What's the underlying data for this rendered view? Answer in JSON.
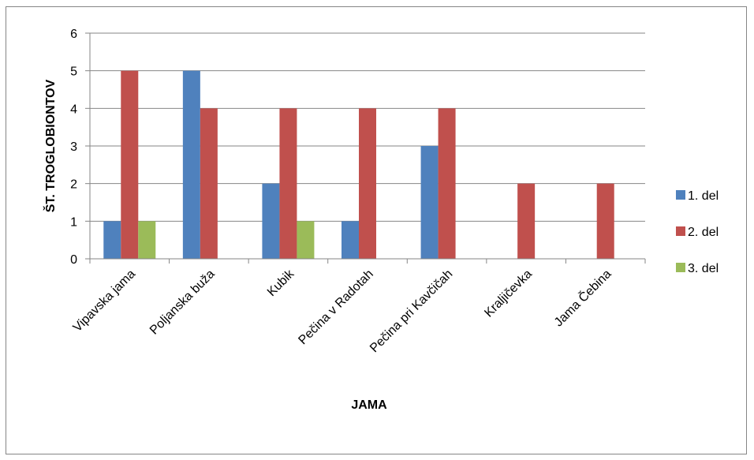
{
  "chart_data": {
    "type": "bar",
    "title": "",
    "xlabel": "JAMA",
    "ylabel": "ŠT. TROGLOBIONTOV",
    "categories": [
      "Vipavska jama",
      "Poljanska buža",
      "Kubik",
      "Pečina v Radotah",
      "Pečina pri Kavčičah",
      "Kraljičevka",
      "Jama Čebina"
    ],
    "series": [
      {
        "name": "1. del",
        "color": "#4F81BD",
        "values": [
          1,
          5,
          2,
          1,
          3,
          null,
          null
        ]
      },
      {
        "name": "2. del",
        "color": "#C0504D",
        "values": [
          5,
          4,
          4,
          4,
          4,
          2,
          2
        ]
      },
      {
        "name": "3. del",
        "color": "#9BBB59",
        "values": [
          1,
          null,
          1,
          null,
          null,
          null,
          null
        ]
      }
    ],
    "ylim": [
      0,
      6
    ],
    "yticks": [
      0,
      1,
      2,
      3,
      4,
      5,
      6
    ],
    "grid": true,
    "legend_position": "right"
  }
}
